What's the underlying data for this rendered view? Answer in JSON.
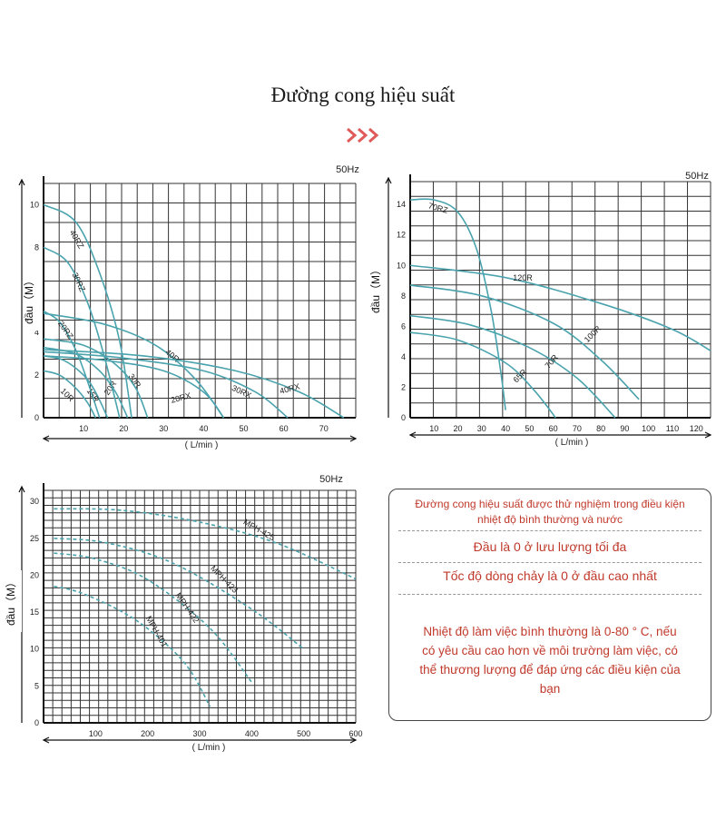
{
  "page": {
    "title": "Đường cong hiệu suất",
    "accent_color": "#e05a5a",
    "curve_color": "#4aa3ad",
    "icon": "triple-chevron-right-icon"
  },
  "notes": {
    "line1": "Đường cong hiệu suất được thử nghiệm trong điều kiện nhiệt độ bình thường và nước",
    "line2": "Đầu là 0 ở lưu lượng tối đa",
    "line3": "Tốc độ dòng chảy là 0 ở đầu cao nhất",
    "line4": "Nhiệt độ làm việc bình thường là 0-80 ° C, nếu có yêu cầu cao hơn về môi trường làm việc, có thể thương lượng để đáp ứng các điều kiện của bạn"
  },
  "chart_data": [
    {
      "type": "line",
      "frequency_label": "50Hz",
      "xlabel": "( L/min )",
      "ylabel": "đầu（M）",
      "xlim": [
        0,
        78
      ],
      "ylim": [
        0,
        11
      ],
      "x_ticks": [
        10,
        20,
        30,
        40,
        50,
        60,
        70
      ],
      "y_ticks": [
        0,
        2,
        4,
        6,
        8,
        10
      ],
      "grid": true,
      "series": [
        {
          "name": "10R",
          "x": [
            0,
            4,
            8,
            11,
            13
          ],
          "y": [
            2.2,
            2.0,
            1.4,
            0.7,
            0
          ]
        },
        {
          "name": "15R",
          "x": [
            0,
            5,
            10,
            13,
            16
          ],
          "y": [
            2.9,
            2.7,
            2.0,
            1.2,
            0
          ]
        },
        {
          "name": "20R",
          "x": [
            0,
            8,
            14,
            18,
            21
          ],
          "y": [
            3.3,
            3.0,
            2.2,
            1.2,
            0
          ]
        },
        {
          "name": "30R",
          "x": [
            0,
            10,
            18,
            23,
            26
          ],
          "y": [
            3.7,
            3.4,
            2.5,
            1.4,
            0
          ]
        },
        {
          "name": "40R",
          "x": [
            0,
            15,
            28,
            38,
            45
          ],
          "y": [
            4.9,
            4.4,
            3.4,
            1.8,
            0
          ]
        },
        {
          "name": "20RX",
          "x": [
            0,
            15,
            30,
            40,
            45
          ],
          "y": [
            2.9,
            2.7,
            2.2,
            1.2,
            0
          ]
        },
        {
          "name": "30RX",
          "x": [
            0,
            20,
            40,
            53,
            61
          ],
          "y": [
            3.1,
            2.8,
            2.2,
            1.2,
            0
          ]
        },
        {
          "name": "40RX",
          "x": [
            0,
            25,
            48,
            64,
            75
          ],
          "y": [
            3.2,
            2.9,
            2.2,
            1.2,
            0
          ]
        },
        {
          "name": "20RZ",
          "x": [
            0,
            4,
            8,
            11,
            14
          ],
          "y": [
            5.0,
            4.5,
            3.2,
            1.7,
            0
          ]
        },
        {
          "name": "30RZ",
          "x": [
            0,
            6,
            11,
            15,
            19
          ],
          "y": [
            8.0,
            7.3,
            5.4,
            3.0,
            0
          ]
        },
        {
          "name": "40RZ",
          "x": [
            0,
            8,
            14,
            19,
            22
          ],
          "y": [
            10.0,
            9.2,
            6.8,
            3.6,
            0
          ]
        }
      ]
    },
    {
      "type": "line",
      "frequency_label": "50Hz",
      "xlabel": "( L/min )",
      "ylabel": "đầu（M）",
      "xlim": [
        0,
        126
      ],
      "ylim": [
        0,
        15.5
      ],
      "x_ticks": [
        10,
        20,
        30,
        40,
        50,
        60,
        70,
        80,
        90,
        100,
        110,
        120
      ],
      "y_ticks": [
        0,
        2,
        4,
        6,
        8,
        10,
        12,
        14
      ],
      "grid": true,
      "series": [
        {
          "name": "70RZ",
          "x": [
            0,
            10,
            20,
            28,
            34,
            38,
            40
          ],
          "y": [
            14.3,
            14.3,
            13.5,
            11.0,
            7.0,
            3.0,
            0.5
          ]
        },
        {
          "name": "120R",
          "x": [
            0,
            40,
            80,
            110,
            126
          ],
          "y": [
            10.0,
            9.2,
            7.5,
            5.8,
            4.4
          ]
        },
        {
          "name": "100R",
          "x": [
            0,
            30,
            60,
            80,
            96
          ],
          "y": [
            8.7,
            8.0,
            6.2,
            3.8,
            1.2
          ]
        },
        {
          "name": "70R",
          "x": [
            0,
            25,
            50,
            70,
            86
          ],
          "y": [
            6.7,
            6.1,
            4.6,
            2.6,
            0
          ]
        },
        {
          "name": "65R",
          "x": [
            0,
            20,
            40,
            52,
            61
          ],
          "y": [
            5.6,
            5.1,
            3.6,
            1.8,
            0
          ]
        }
      ]
    },
    {
      "type": "line",
      "frequency_label": "50Hz",
      "xlabel": "( L/min )",
      "ylabel": "đầu（M）",
      "xlim": [
        0,
        600
      ],
      "ylim": [
        0,
        31.5
      ],
      "x_ticks": [
        100,
        200,
        300,
        400,
        500,
        600
      ],
      "y_ticks": [
        0,
        5,
        10,
        15,
        20,
        25,
        30
      ],
      "grid": true,
      "series": [
        {
          "name": "MPH-425",
          "x": [
            20,
            150,
            300,
            450,
            600
          ],
          "y": [
            29,
            28.8,
            27.2,
            24.3,
            19.5
          ]
        },
        {
          "name": "MPH-423",
          "x": [
            20,
            120,
            250,
            400,
            500
          ],
          "y": [
            25,
            24.4,
            21.6,
            15.4,
            10
          ]
        },
        {
          "name": "MPH-422",
          "x": [
            20,
            100,
            200,
            320,
            400
          ],
          "y": [
            23,
            22.2,
            19.4,
            12.8,
            5.5
          ]
        },
        {
          "name": "MPH-401",
          "x": [
            20,
            80,
            180,
            270,
            320
          ],
          "y": [
            18.5,
            17.4,
            13.8,
            8.2,
            2.2
          ]
        }
      ]
    }
  ]
}
